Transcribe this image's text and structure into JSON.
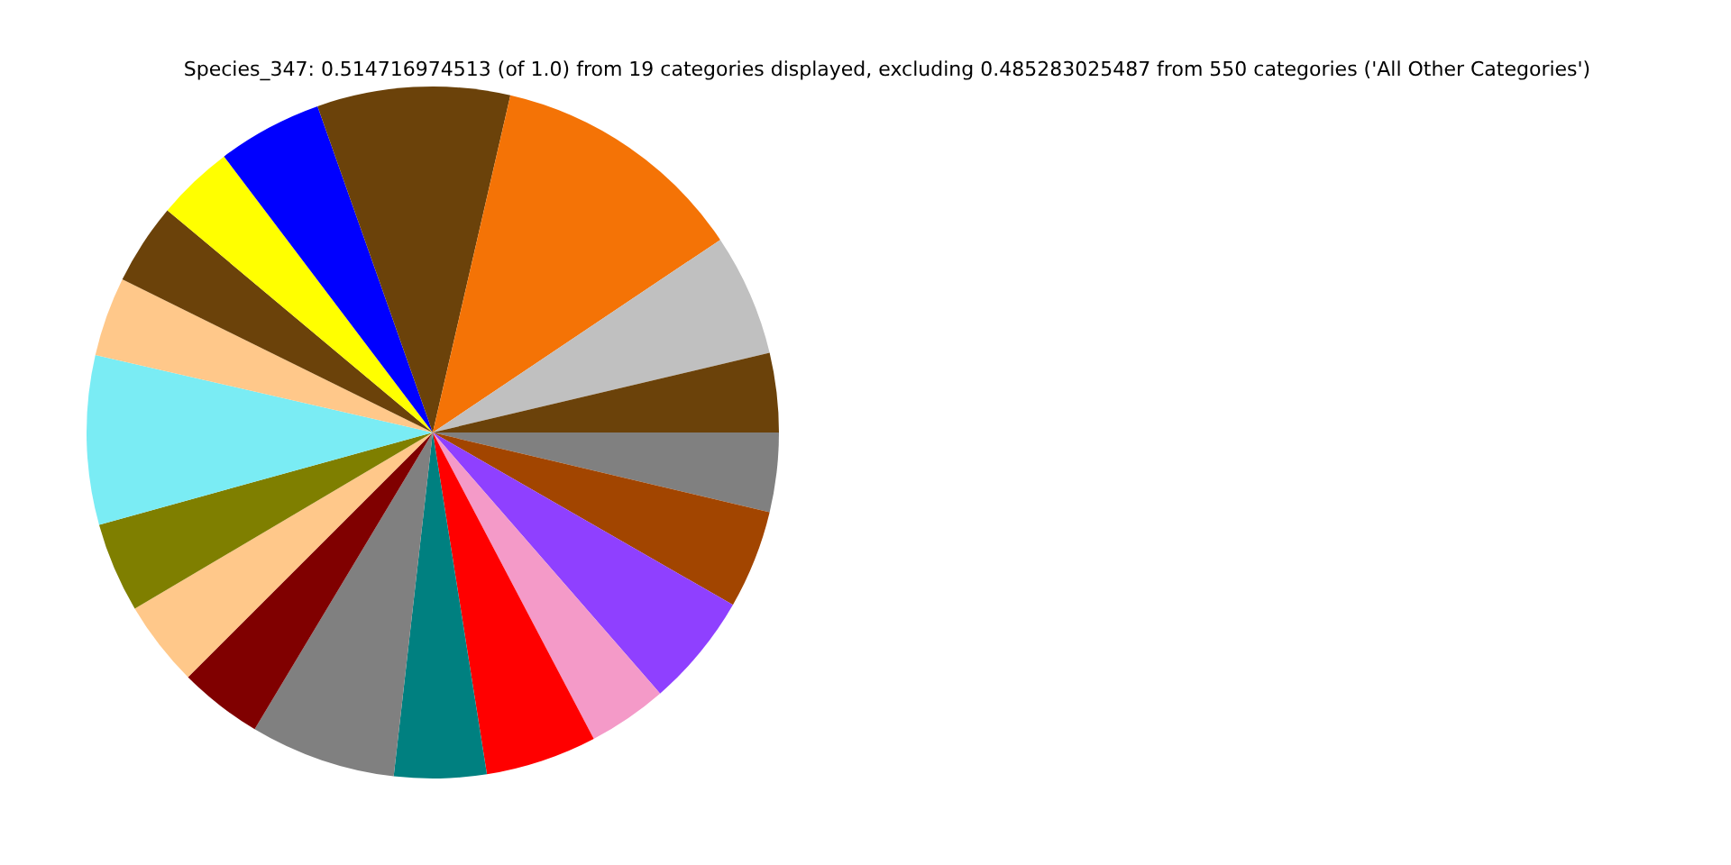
{
  "chart_data": {
    "type": "pie",
    "title": "Species_347: 0.514716974513 (of 1.0) from 19 categories displayed, excluding 0.485283025487 from 550 categories ('All Other Categories')",
    "categories": [
      null,
      null,
      null,
      null,
      null,
      null,
      null,
      null,
      null,
      null,
      null,
      null,
      null,
      null,
      null,
      null,
      null,
      null,
      null
    ],
    "values": [
      3.7,
      4.6,
      5.3,
      3.7,
      5.2,
      4.3,
      6.8,
      3.9,
      4.0,
      4.2,
      7.9,
      3.7,
      3.8,
      3.6,
      4.9,
      9.0,
      12.0,
      5.7,
      3.7
    ],
    "colors": [
      "#808080",
      "#a24500",
      "#8f40ff",
      "#f49ac8",
      "#ff0000",
      "#008080",
      "#808080",
      "#800000",
      "#ffc88a",
      "#7f7f00",
      "#7aecf4",
      "#ffc88a",
      "#6b420a",
      "#ffff00",
      "#0000ff",
      "#6b420a",
      "#f47306",
      "#c0c0c0",
      "#6b420a"
    ],
    "legend": false
  }
}
